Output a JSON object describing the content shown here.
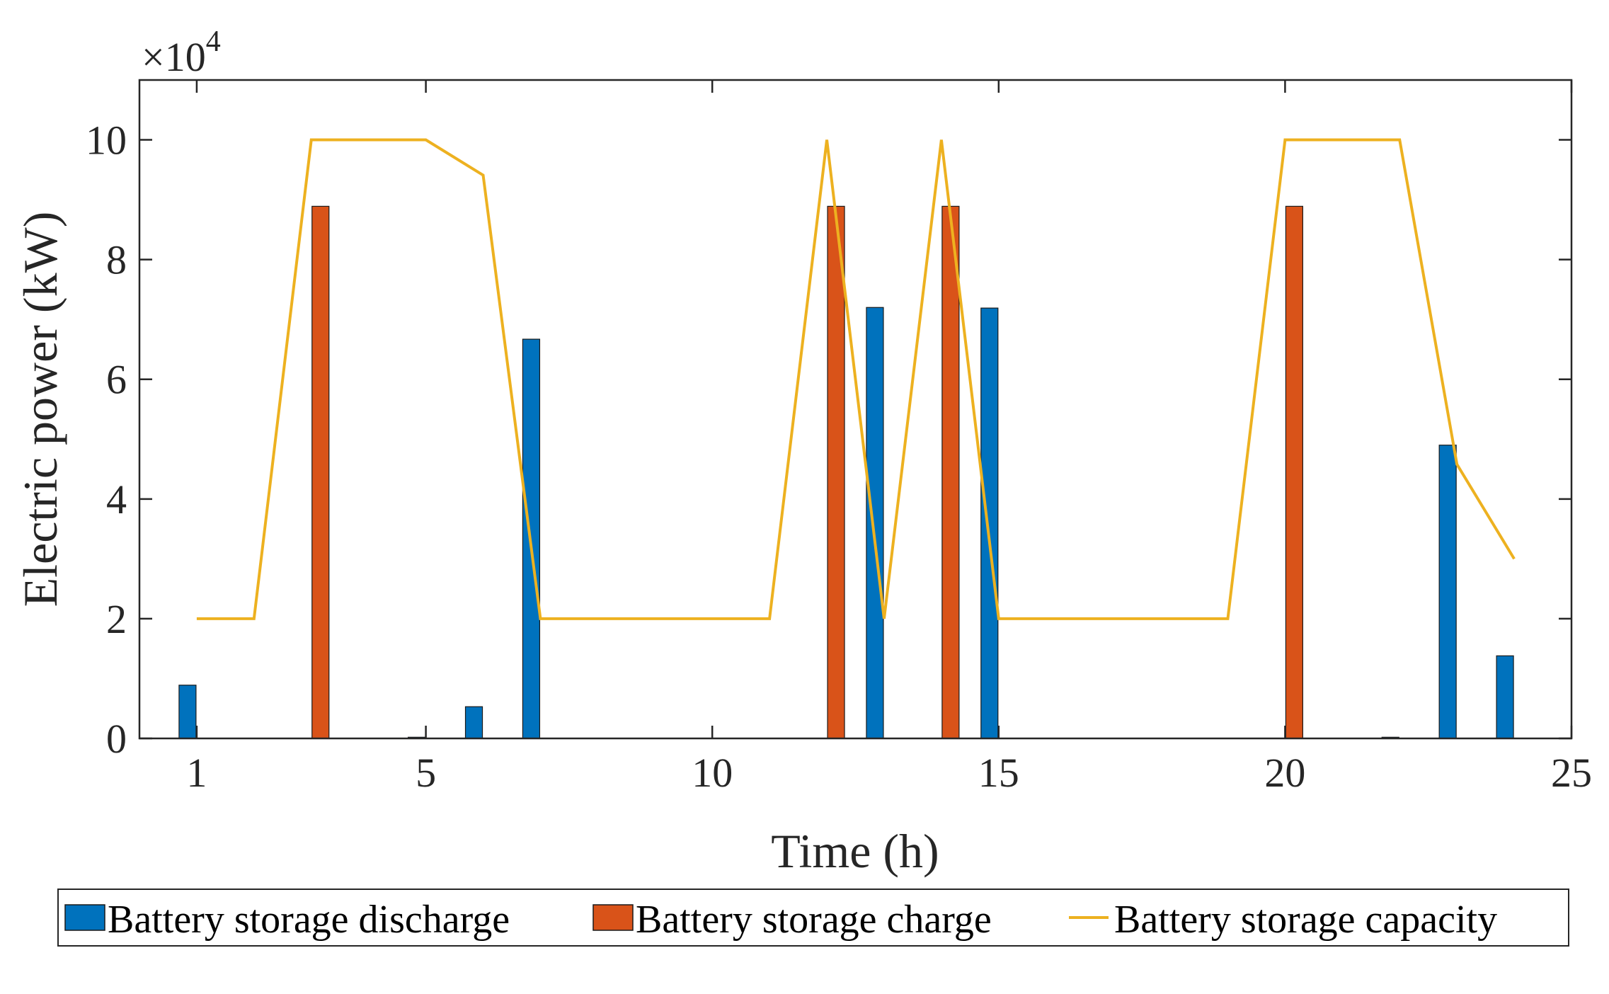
{
  "chart_data": {
    "type": "bar",
    "title": "",
    "xlabel": "Time (h)",
    "ylabel": "Electric power (kW)",
    "y_exponent_label": "×10",
    "y_exponent_power": "4",
    "xlim": [
      0,
      25
    ],
    "ylim": [
      0,
      110000
    ],
    "xticks": [
      1,
      5,
      10,
      15,
      20,
      25
    ],
    "xtick_labels": [
      "1",
      "5",
      "10",
      "15",
      "20",
      "25"
    ],
    "yticks": [
      0,
      20000,
      40000,
      60000,
      80000,
      100000
    ],
    "ytick_labels": [
      "0",
      "2",
      "4",
      "6",
      "8",
      "10"
    ],
    "grid": false,
    "legend_position": "bottom",
    "x": [
      1,
      2,
      3,
      4,
      5,
      6,
      7,
      8,
      9,
      10,
      11,
      12,
      13,
      14,
      15,
      16,
      17,
      18,
      19,
      20,
      21,
      22,
      23,
      24
    ],
    "series": [
      {
        "name": "Battery storage discharge",
        "kind": "bar",
        "color": "#0072BD",
        "values": [
          8900,
          0,
          0,
          0,
          200,
          5300,
          66700,
          0,
          0,
          0,
          0,
          0,
          72000,
          0,
          71900,
          0,
          0,
          0,
          0,
          0,
          0,
          200,
          49000,
          13800
        ]
      },
      {
        "name": "Battery storage charge",
        "kind": "bar",
        "color": "#D95319",
        "values": [
          0,
          0,
          88900,
          0,
          0,
          0,
          0,
          0,
          0,
          0,
          0,
          88900,
          0,
          88900,
          0,
          0,
          0,
          0,
          0,
          88900,
          0,
          0,
          0,
          0
        ]
      },
      {
        "name": "Battery storage capacity",
        "kind": "line",
        "color": "#EDB120",
        "values": [
          20000,
          20000,
          100000,
          100000,
          100000,
          94100,
          20000,
          20000,
          20000,
          20000,
          20000,
          100000,
          20000,
          100000,
          20000,
          20000,
          20000,
          20000,
          20000,
          100000,
          100000,
          100000,
          45800,
          30000
        ]
      }
    ]
  }
}
